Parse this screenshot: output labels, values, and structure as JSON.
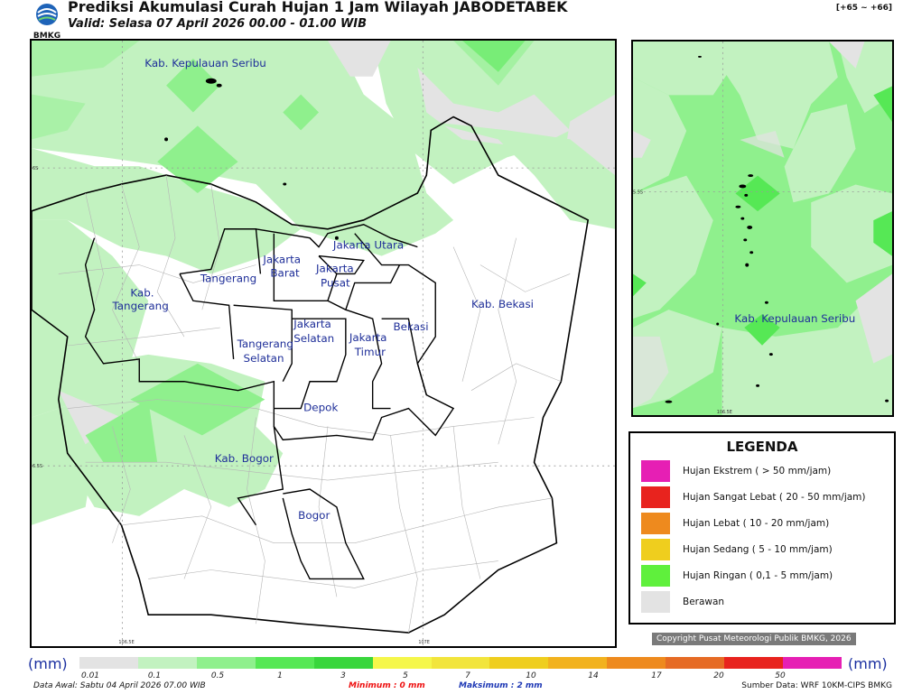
{
  "header": {
    "title": "Prediksi Akumulasi Curah Hujan 1 Jam Wilayah JABODETABEK",
    "valid": "Valid: Selasa 07 April 2026 00.00 - 01.00 WIB",
    "range": "[+65 ~ +66]",
    "logo_text": "BMKG"
  },
  "main_map": {
    "labels": {
      "kepulauan_seribu": "Kab. Kepulauan Seribu",
      "jakarta_utara": "Jakarta Utara",
      "jakarta_barat_1": "Jakarta",
      "jakarta_barat_2": "Barat",
      "jakarta_pusat_1": "Jakarta",
      "jakarta_pusat_2": "Pusat",
      "tangerang": "Tangerang",
      "kab_tangerang_1": "Kab.",
      "kab_tangerang_2": "Tangerang",
      "jakarta_selatan_1": "Jakarta",
      "jakarta_selatan_2": "Selatan",
      "jakarta_timur_1": "Jakarta",
      "jakarta_timur_2": "Timur",
      "bekasi": "Bekasi",
      "kab_bekasi": "Kab. Bekasi",
      "tangerang_selatan_1": "Tangerang",
      "tangerang_selatan_2": "Selatan",
      "depok": "Depok",
      "kab_bogor": "Kab. Bogor",
      "bogor": "Bogor"
    },
    "coords": {
      "lat_top": "6S",
      "lat_bottom": "6.5S",
      "lon_left": "106.5E",
      "lon_right": "107E"
    }
  },
  "inset_map": {
    "label": "Kab. Kepulauan Seribu",
    "coords": {
      "lat": "5.5S",
      "lon": "106.5E"
    }
  },
  "legend": {
    "title": "LEGENDA",
    "items": [
      {
        "label": "Hujan Ekstrem ( > 50 mm/jam)",
        "color": "#e61fb4"
      },
      {
        "label": "Hujan Sangat Lebat ( 20 - 50 mm/jam)",
        "color": "#e8231e"
      },
      {
        "label": "Hujan Lebat ( 10 - 20 mm/jam)",
        "color": "#ee8a1e"
      },
      {
        "label": "Hujan Sedang ( 5 - 10 mm/jam)",
        "color": "#efce1e"
      },
      {
        "label": "Hujan Ringan ( 0,1 - 5 mm/jam)",
        "color": "#5ff03c"
      },
      {
        "label": "Berawan",
        "color": "#e3e3e3"
      }
    ]
  },
  "copyright": "Copyright Pusat Meteorologi Publik BMKG, 2026",
  "colorbar": {
    "unit": "(mm)",
    "ticks": [
      "0.01",
      "0.1",
      "0.5",
      "1",
      "3",
      "5",
      "7",
      "10",
      "14",
      "17",
      "20",
      "50"
    ],
    "colors": [
      "#e3e3e3",
      "#c2f2c0",
      "#8ff08d",
      "#56e855",
      "#39d63c",
      "#f5f74a",
      "#f2e53c",
      "#efce1e",
      "#f2b21e",
      "#ee8a1e",
      "#e66b25",
      "#e8231e",
      "#e61fb4"
    ]
  },
  "footer": {
    "left": "Data Awal: Sabtu 04 April 2026 07.00 WIB",
    "minimum": "Minimum :     0 mm",
    "maximum": "Maksimum :     2 mm",
    "right": "Sumber Data: WRF 10KM-CIPS BMKG"
  }
}
